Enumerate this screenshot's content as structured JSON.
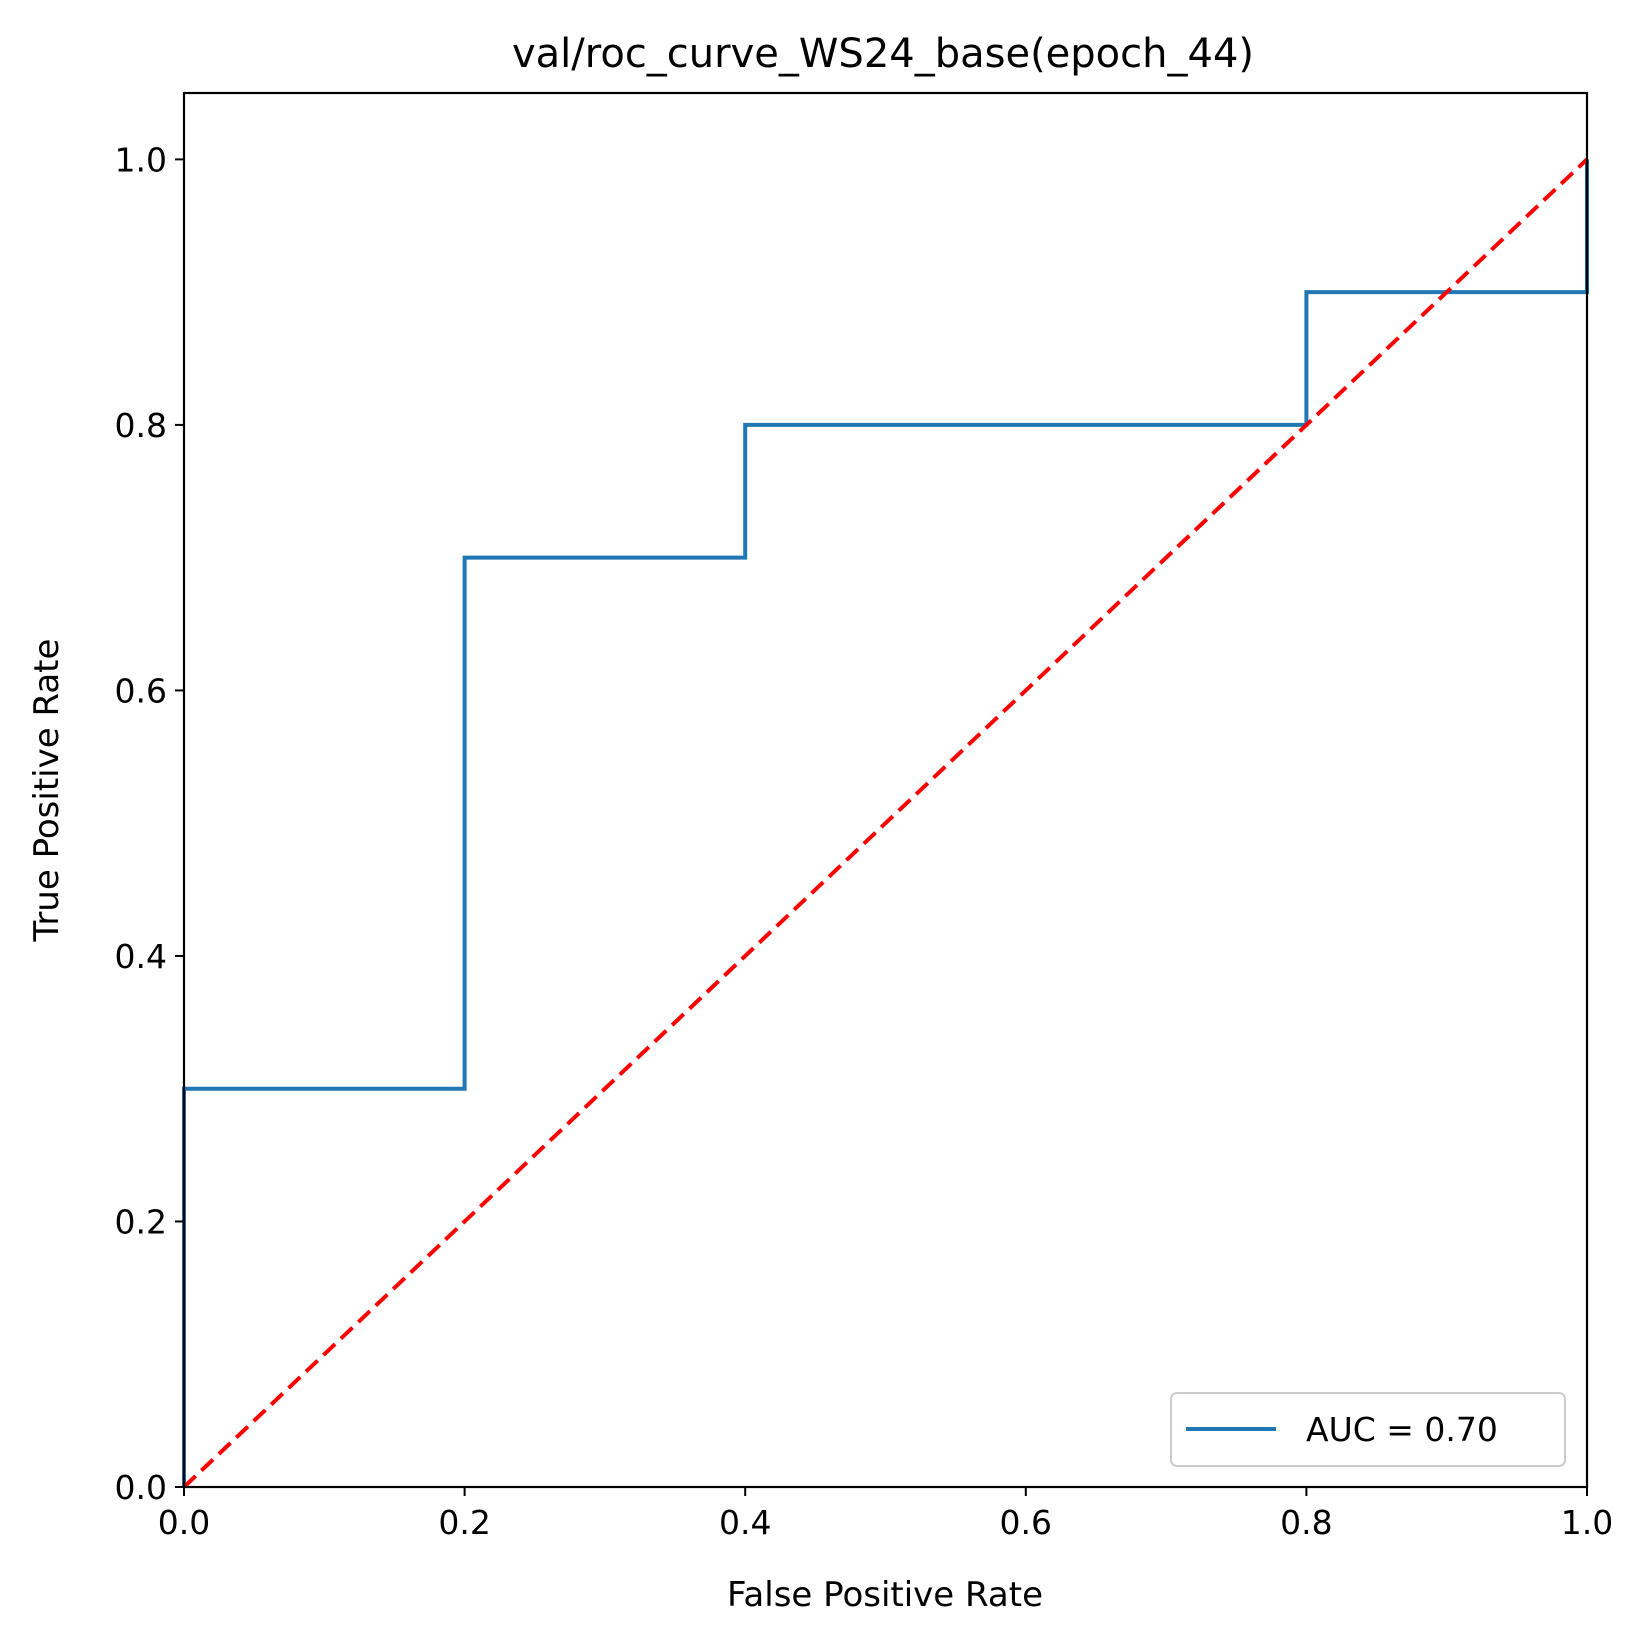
{
  "chart_data": {
    "type": "line",
    "title": "val/roc_curve_WS24_base(epoch_44)",
    "xlabel": "False Positive Rate",
    "ylabel": "True Positive Rate",
    "xlim": [
      0,
      1
    ],
    "ylim": [
      0,
      1.05
    ],
    "xticks": [
      0.0,
      0.2,
      0.4,
      0.6,
      0.8,
      1.0
    ],
    "yticks": [
      0.0,
      0.2,
      0.4,
      0.6,
      0.8,
      1.0
    ],
    "xtick_labels": [
      "0.0",
      "0.2",
      "0.4",
      "0.6",
      "0.8",
      "1.0"
    ],
    "ytick_labels": [
      "0.0",
      "0.2",
      "0.4",
      "0.6",
      "0.8",
      "1.0"
    ],
    "grid": false,
    "legend_position": "lower right",
    "series": [
      {
        "name": "AUC = 0.70",
        "color": "#1f77b4",
        "style": "solid",
        "x": [
          0.0,
          0.0,
          0.2,
          0.2,
          0.4,
          0.4,
          0.8,
          0.8,
          1.0,
          1.0
        ],
        "y": [
          0.0,
          0.3,
          0.3,
          0.7,
          0.7,
          0.8,
          0.8,
          0.9,
          0.9,
          1.0
        ]
      },
      {
        "color": "#ff0000",
        "style": "dashed",
        "x": [
          0.0,
          1.0
        ],
        "y": [
          0.0,
          1.0
        ]
      }
    ]
  }
}
